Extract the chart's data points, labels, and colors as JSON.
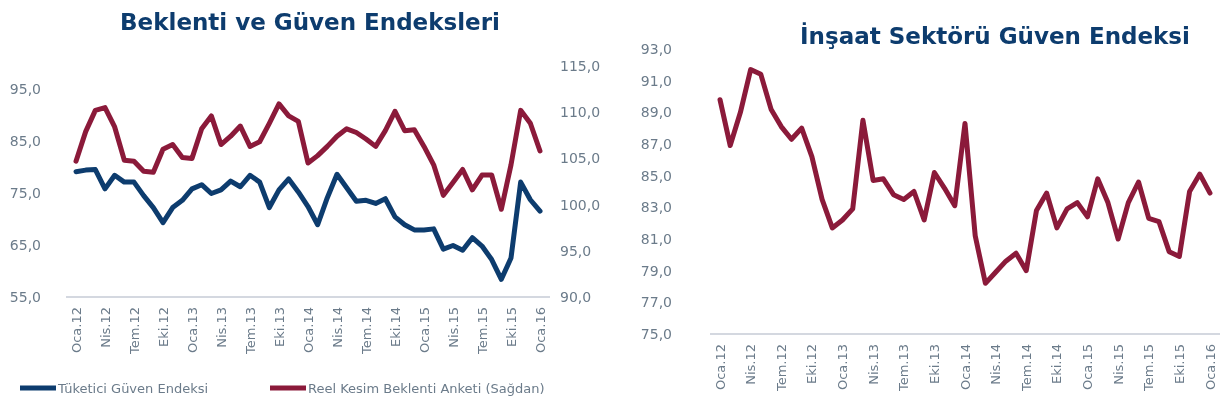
{
  "chart_data": [
    {
      "type": "line",
      "title": "Beklenti ve Güven Endeksleri",
      "categories": [
        "Oca.12",
        null,
        null,
        "Nis.12",
        null,
        null,
        "Tem.12",
        null,
        null,
        "Eki.12",
        null,
        null,
        "Oca.13",
        null,
        null,
        "Nis.13",
        null,
        null,
        "Tem.13",
        null,
        null,
        "Eki.13",
        null,
        null,
        "Oca.14",
        null,
        null,
        "Nis.14",
        null,
        null,
        "Tem.14",
        null,
        null,
        "Eki.14",
        null,
        null,
        "Oca.15",
        null,
        null,
        "Nis.15",
        null,
        null,
        "Tem.15",
        null,
        null,
        "Eki.15",
        null,
        null,
        "Oca.16"
      ],
      "series": [
        {
          "name": "Tüketici Güven Endeksi",
          "color": "#0d3c6e",
          "values": [
            79.1,
            79.4,
            79.5,
            75.8,
            78.4,
            77.1,
            77.1,
            74.5,
            72.2,
            69.3,
            72.2,
            73.6,
            75.8,
            76.6,
            74.9,
            75.6,
            77.3,
            76.2,
            78.4,
            77.1,
            72.2,
            75.6,
            77.7,
            75.2,
            72.4,
            68.9,
            74.1,
            78.6,
            76.0,
            73.4,
            73.6,
            73.0,
            73.9,
            70.4,
            68.9,
            67.9,
            67.9,
            68.1,
            64.2,
            64.9,
            64.0,
            66.4,
            64.8,
            62.2,
            58.4,
            62.5,
            77.1,
            73.7,
            71.5
          ]
        },
        {
          "name": "Reel Kesim Beklenti Anketi (Sağdan)",
          "color": "#8b1a3a",
          "axis": "y2",
          "values": [
            104.7,
            107.9,
            110.2,
            110.5,
            108.4,
            104.8,
            104.7,
            103.6,
            103.5,
            106.0,
            106.5,
            105.1,
            105.0,
            108.2,
            109.6,
            106.5,
            107.4,
            108.5,
            106.3,
            106.8,
            108.8,
            110.9,
            109.6,
            109.0,
            104.5,
            105.3,
            106.3,
            107.4,
            108.2,
            107.8,
            107.1,
            106.3,
            108.0,
            110.1,
            108.0,
            108.1,
            106.3,
            104.3,
            101.0,
            102.4,
            103.8,
            101.6,
            103.2,
            103.2,
            99.5,
            104.3,
            110.2,
            108.8,
            105.8
          ]
        }
      ],
      "ylim": [
        55,
        95
      ],
      "yticks": [
        {
          "value": 55,
          "label": "55,0"
        },
        {
          "value": 65,
          "label": "65,0"
        },
        {
          "value": 75,
          "label": "75,0"
        },
        {
          "value": 85,
          "label": "85,0"
        },
        {
          "value": 95,
          "label": "95,0"
        }
      ],
      "y2lim": [
        90,
        115
      ],
      "y2ticks": [
        {
          "value": 90,
          "label": "90,0"
        },
        {
          "value": 95,
          "label": "95,0"
        },
        {
          "value": 100,
          "label": "100,0"
        },
        {
          "value": 105,
          "label": "105,0"
        },
        {
          "value": 110,
          "label": "110,0"
        },
        {
          "value": 115,
          "label": "115,0"
        }
      ],
      "grid": false,
      "legend": "bottom"
    },
    {
      "type": "line",
      "title": "İnşaat Sektörü Güven Endeksi",
      "categories": [
        "Oca.12",
        null,
        null,
        "Nis.12",
        null,
        null,
        "Tem.12",
        null,
        null,
        "Eki.12",
        null,
        null,
        "Oca.13",
        null,
        null,
        "Nis.13",
        null,
        null,
        "Tem.13",
        null,
        null,
        "Eki.13",
        null,
        null,
        "Oca.14",
        null,
        null,
        "Nis.14",
        null,
        null,
        "Tem.14",
        null,
        null,
        "Eki.14",
        null,
        null,
        "Oca.15",
        null,
        null,
        "Nis.15",
        null,
        null,
        "Tem.15",
        null,
        null,
        "Eki.15",
        null,
        null,
        "Oca.16"
      ],
      "series": [
        {
          "color": "#8b1a3a",
          "values": [
            89.8,
            86.9,
            89.0,
            91.7,
            91.4,
            89.2,
            88.1,
            87.3,
            88.0,
            86.2,
            83.5,
            81.7,
            82.2,
            82.9,
            88.5,
            84.7,
            84.8,
            83.8,
            83.5,
            84.0,
            82.2,
            85.2,
            84.2,
            83.1,
            88.3,
            81.2,
            78.2,
            78.9,
            79.6,
            80.1,
            79.0,
            82.8,
            83.9,
            81.7,
            82.9,
            83.3,
            82.4,
            84.8,
            83.3,
            81.0,
            83.3,
            84.6,
            82.3,
            82.1,
            80.2,
            79.9,
            84.0,
            85.1,
            83.9
          ]
        }
      ],
      "ylim": [
        75,
        93
      ],
      "yticks": [
        {
          "value": 75,
          "label": "75,0"
        },
        {
          "value": 77,
          "label": "77,0"
        },
        {
          "value": 79,
          "label": "79,0"
        },
        {
          "value": 81,
          "label": "81,0"
        },
        {
          "value": 83,
          "label": "83,0"
        },
        {
          "value": 85,
          "label": "85,0"
        },
        {
          "value": 87,
          "label": "87,0"
        },
        {
          "value": 89,
          "label": "89,0"
        },
        {
          "value": 91,
          "label": "91,0"
        },
        {
          "value": 93,
          "label": "93,0"
        }
      ],
      "grid": false
    }
  ]
}
